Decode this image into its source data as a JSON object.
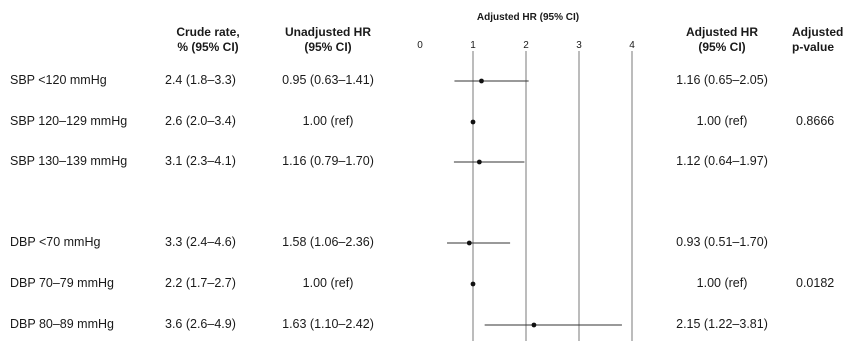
{
  "headers": {
    "crude": "Crude rate,\n% (95% CI)",
    "unadjusted": "Unadjusted HR\n(95% CI)",
    "forest": "Adjusted HR (95% CI)",
    "adjusted": "Adjusted HR\n(95% CI)",
    "pvalue": "Adjusted\np-value"
  },
  "rows": [
    {
      "label": "SBP <120 mmHg",
      "crude": "2.4 (1.8–3.3)",
      "unadjusted": "0.95 (0.63–1.41)",
      "adjusted": "1.16 (0.65–2.05)",
      "pvalue": ""
    },
    {
      "label": "SBP 120–129 mmHg",
      "crude": "2.6 (2.0–3.4)",
      "unadjusted": "1.00 (ref)",
      "adjusted": "1.00 (ref)",
      "pvalue": "0.8666"
    },
    {
      "label": "SBP 130–139 mmHg",
      "crude": "3.1 (2.3–4.1)",
      "unadjusted": "1.16 (0.79–1.70)",
      "adjusted": "1.12 (0.64–1.97)",
      "pvalue": ""
    },
    {
      "label": "DBP <70 mmHg",
      "crude": "3.3 (2.4–4.6)",
      "unadjusted": "1.58 (1.06–2.36)",
      "adjusted": "0.93 (0.51–1.70)",
      "pvalue": ""
    },
    {
      "label": "DBP 70–79 mmHg",
      "crude": "2.2 (1.7–2.7)",
      "unadjusted": "1.00 (ref)",
      "adjusted": "1.00 (ref)",
      "pvalue": "0.0182"
    },
    {
      "label": "DBP 80–89 mmHg",
      "crude": "3.6 (2.6–4.9)",
      "unadjusted": "1.63 (1.10–2.42)",
      "adjusted": "2.15 (1.22–3.81)",
      "pvalue": ""
    }
  ],
  "chart_data": {
    "type": "scatter",
    "title": "Adjusted HR (95% CI)",
    "xlim": [
      0,
      4
    ],
    "x_ticks": [
      0,
      1,
      2,
      3,
      4
    ],
    "reference_lines": [
      1,
      2,
      3,
      4
    ],
    "categories": [
      "SBP <120 mmHg",
      "SBP 120–129 mmHg",
      "SBP 130–139 mmHg",
      "DBP <70 mmHg",
      "DBP 70–79 mmHg",
      "DBP 80–89 mmHg"
    ],
    "points": [
      {
        "hr": 1.16,
        "lo": 0.65,
        "hi": 2.05
      },
      {
        "hr": 1.0,
        "lo": 1.0,
        "hi": 1.0
      },
      {
        "hr": 1.12,
        "lo": 0.64,
        "hi": 1.97
      },
      {
        "hr": 0.93,
        "lo": 0.51,
        "hi": 1.7
      },
      {
        "hr": 1.0,
        "lo": 1.0,
        "hi": 1.0
      },
      {
        "hr": 2.15,
        "lo": 1.22,
        "hi": 3.81
      }
    ]
  }
}
